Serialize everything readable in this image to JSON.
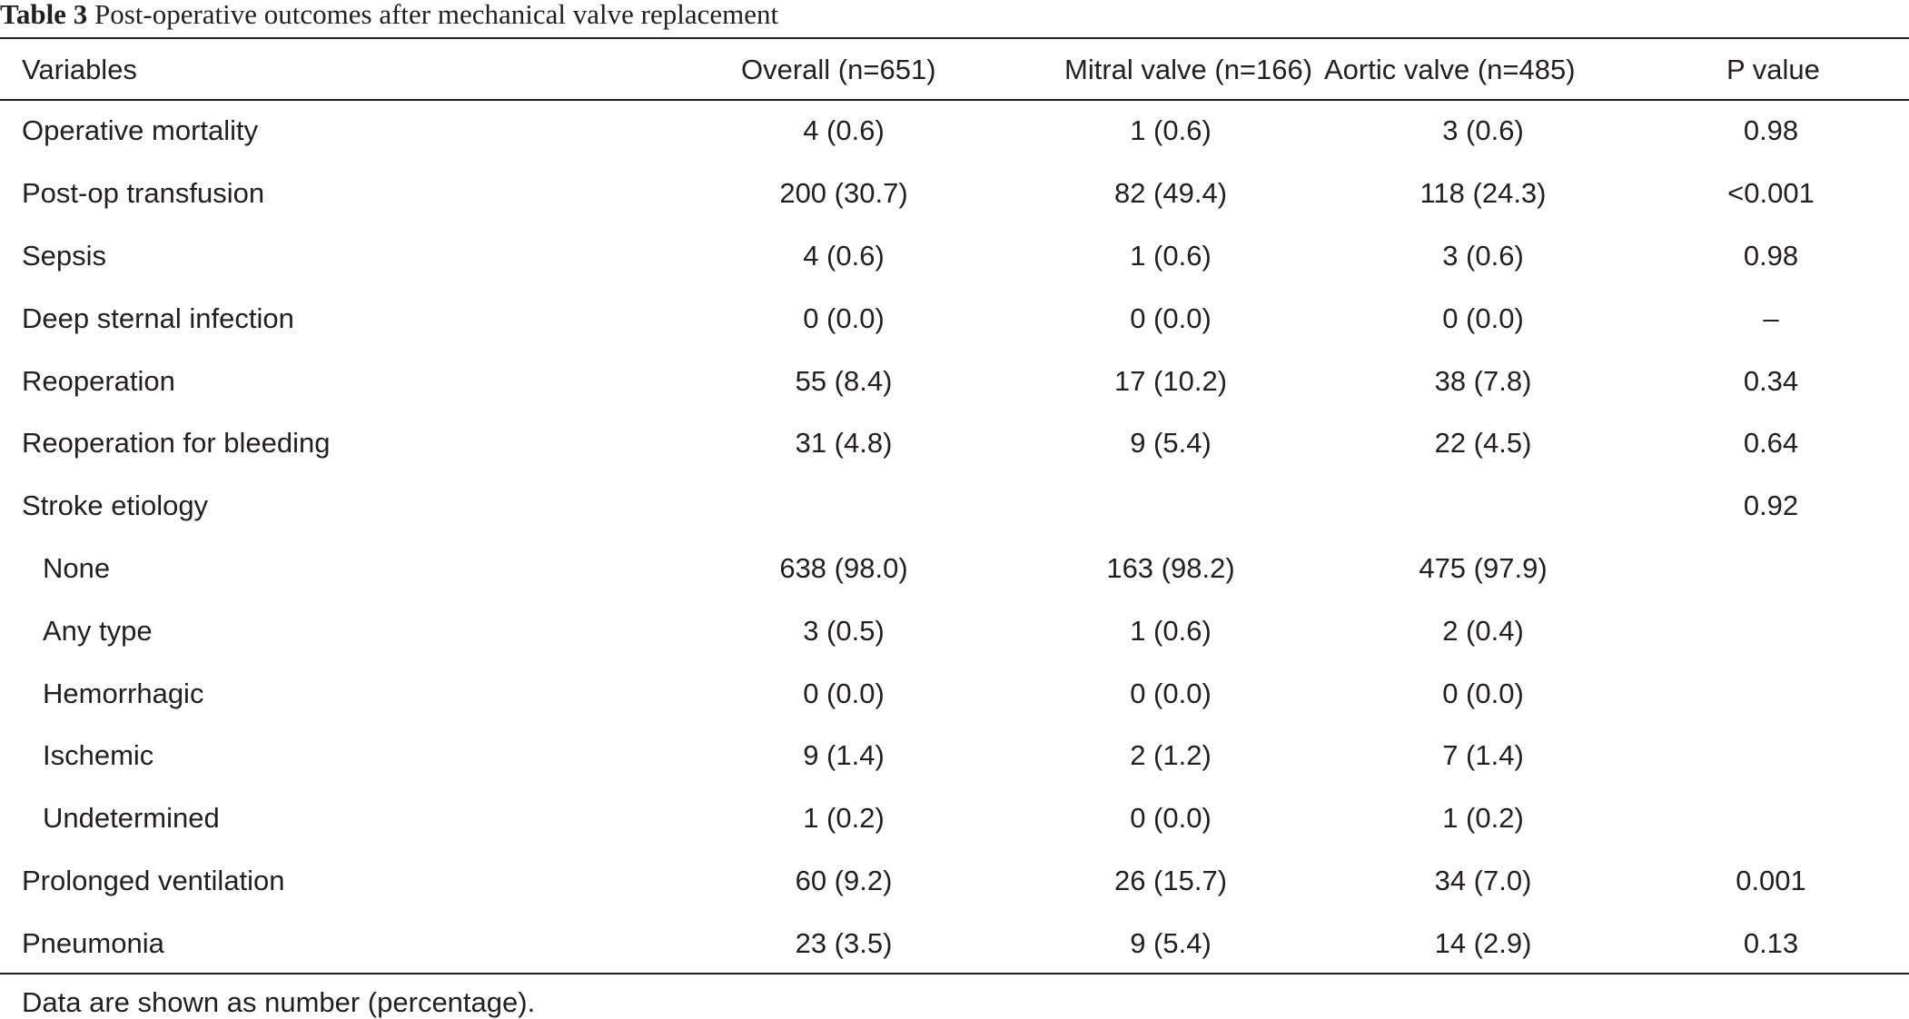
{
  "caption": {
    "label": "Table 3",
    "title": "Post-operative outcomes after mechanical valve replacement"
  },
  "columns": [
    "Variables",
    "Overall (n=651)",
    "Mitral valve (n=166)",
    "Aortic valve (n=485)",
    "P value"
  ],
  "rows": [
    {
      "variable": "Operative mortality",
      "overall": "4 (0.6)",
      "mitral": "1 (0.6)",
      "aortic": "3 (0.6)",
      "p": "0.98",
      "indent": false
    },
    {
      "variable": "Post-op transfusion",
      "overall": "200 (30.7)",
      "mitral": "82 (49.4)",
      "aortic": "118 (24.3)",
      "p": "<0.001",
      "indent": false
    },
    {
      "variable": "Sepsis",
      "overall": "4 (0.6)",
      "mitral": "1 (0.6)",
      "aortic": "3 (0.6)",
      "p": "0.98",
      "indent": false
    },
    {
      "variable": "Deep sternal infection",
      "overall": "0 (0.0)",
      "mitral": "0 (0.0)",
      "aortic": "0 (0.0)",
      "p": "–",
      "indent": false
    },
    {
      "variable": "Reoperation",
      "overall": "55 (8.4)",
      "mitral": "17 (10.2)",
      "aortic": "38 (7.8)",
      "p": "0.34",
      "indent": false
    },
    {
      "variable": "Reoperation for bleeding",
      "overall": "31 (4.8)",
      "mitral": "9 (5.4)",
      "aortic": "22 (4.5)",
      "p": "0.64",
      "indent": false
    },
    {
      "variable": "Stroke etiology",
      "overall": "",
      "mitral": "",
      "aortic": "",
      "p": "0.92",
      "indent": false
    },
    {
      "variable": "None",
      "overall": "638 (98.0)",
      "mitral": "163 (98.2)",
      "aortic": "475 (97.9)",
      "p": "",
      "indent": true
    },
    {
      "variable": "Any type",
      "overall": "3 (0.5)",
      "mitral": "1 (0.6)",
      "aortic": "2 (0.4)",
      "p": "",
      "indent": true
    },
    {
      "variable": "Hemorrhagic",
      "overall": "0 (0.0)",
      "mitral": "0 (0.0)",
      "aortic": "0 (0.0)",
      "p": "",
      "indent": true
    },
    {
      "variable": "Ischemic",
      "overall": "9 (1.4)",
      "mitral": "2 (1.2)",
      "aortic": "7 (1.4)",
      "p": "",
      "indent": true
    },
    {
      "variable": "Undetermined",
      "overall": "1 (0.2)",
      "mitral": "0 (0.0)",
      "aortic": "1 (0.2)",
      "p": "",
      "indent": true
    },
    {
      "variable": "Prolonged ventilation",
      "overall": "60 (9.2)",
      "mitral": "26 (15.7)",
      "aortic": "34 (7.0)",
      "p": "0.001",
      "indent": false
    },
    {
      "variable": "Pneumonia",
      "overall": "23 (3.5)",
      "mitral": "9 (5.4)",
      "aortic": "14 (2.9)",
      "p": "0.13",
      "indent": false
    }
  ],
  "footnote": "Data are shown as number (percentage)."
}
